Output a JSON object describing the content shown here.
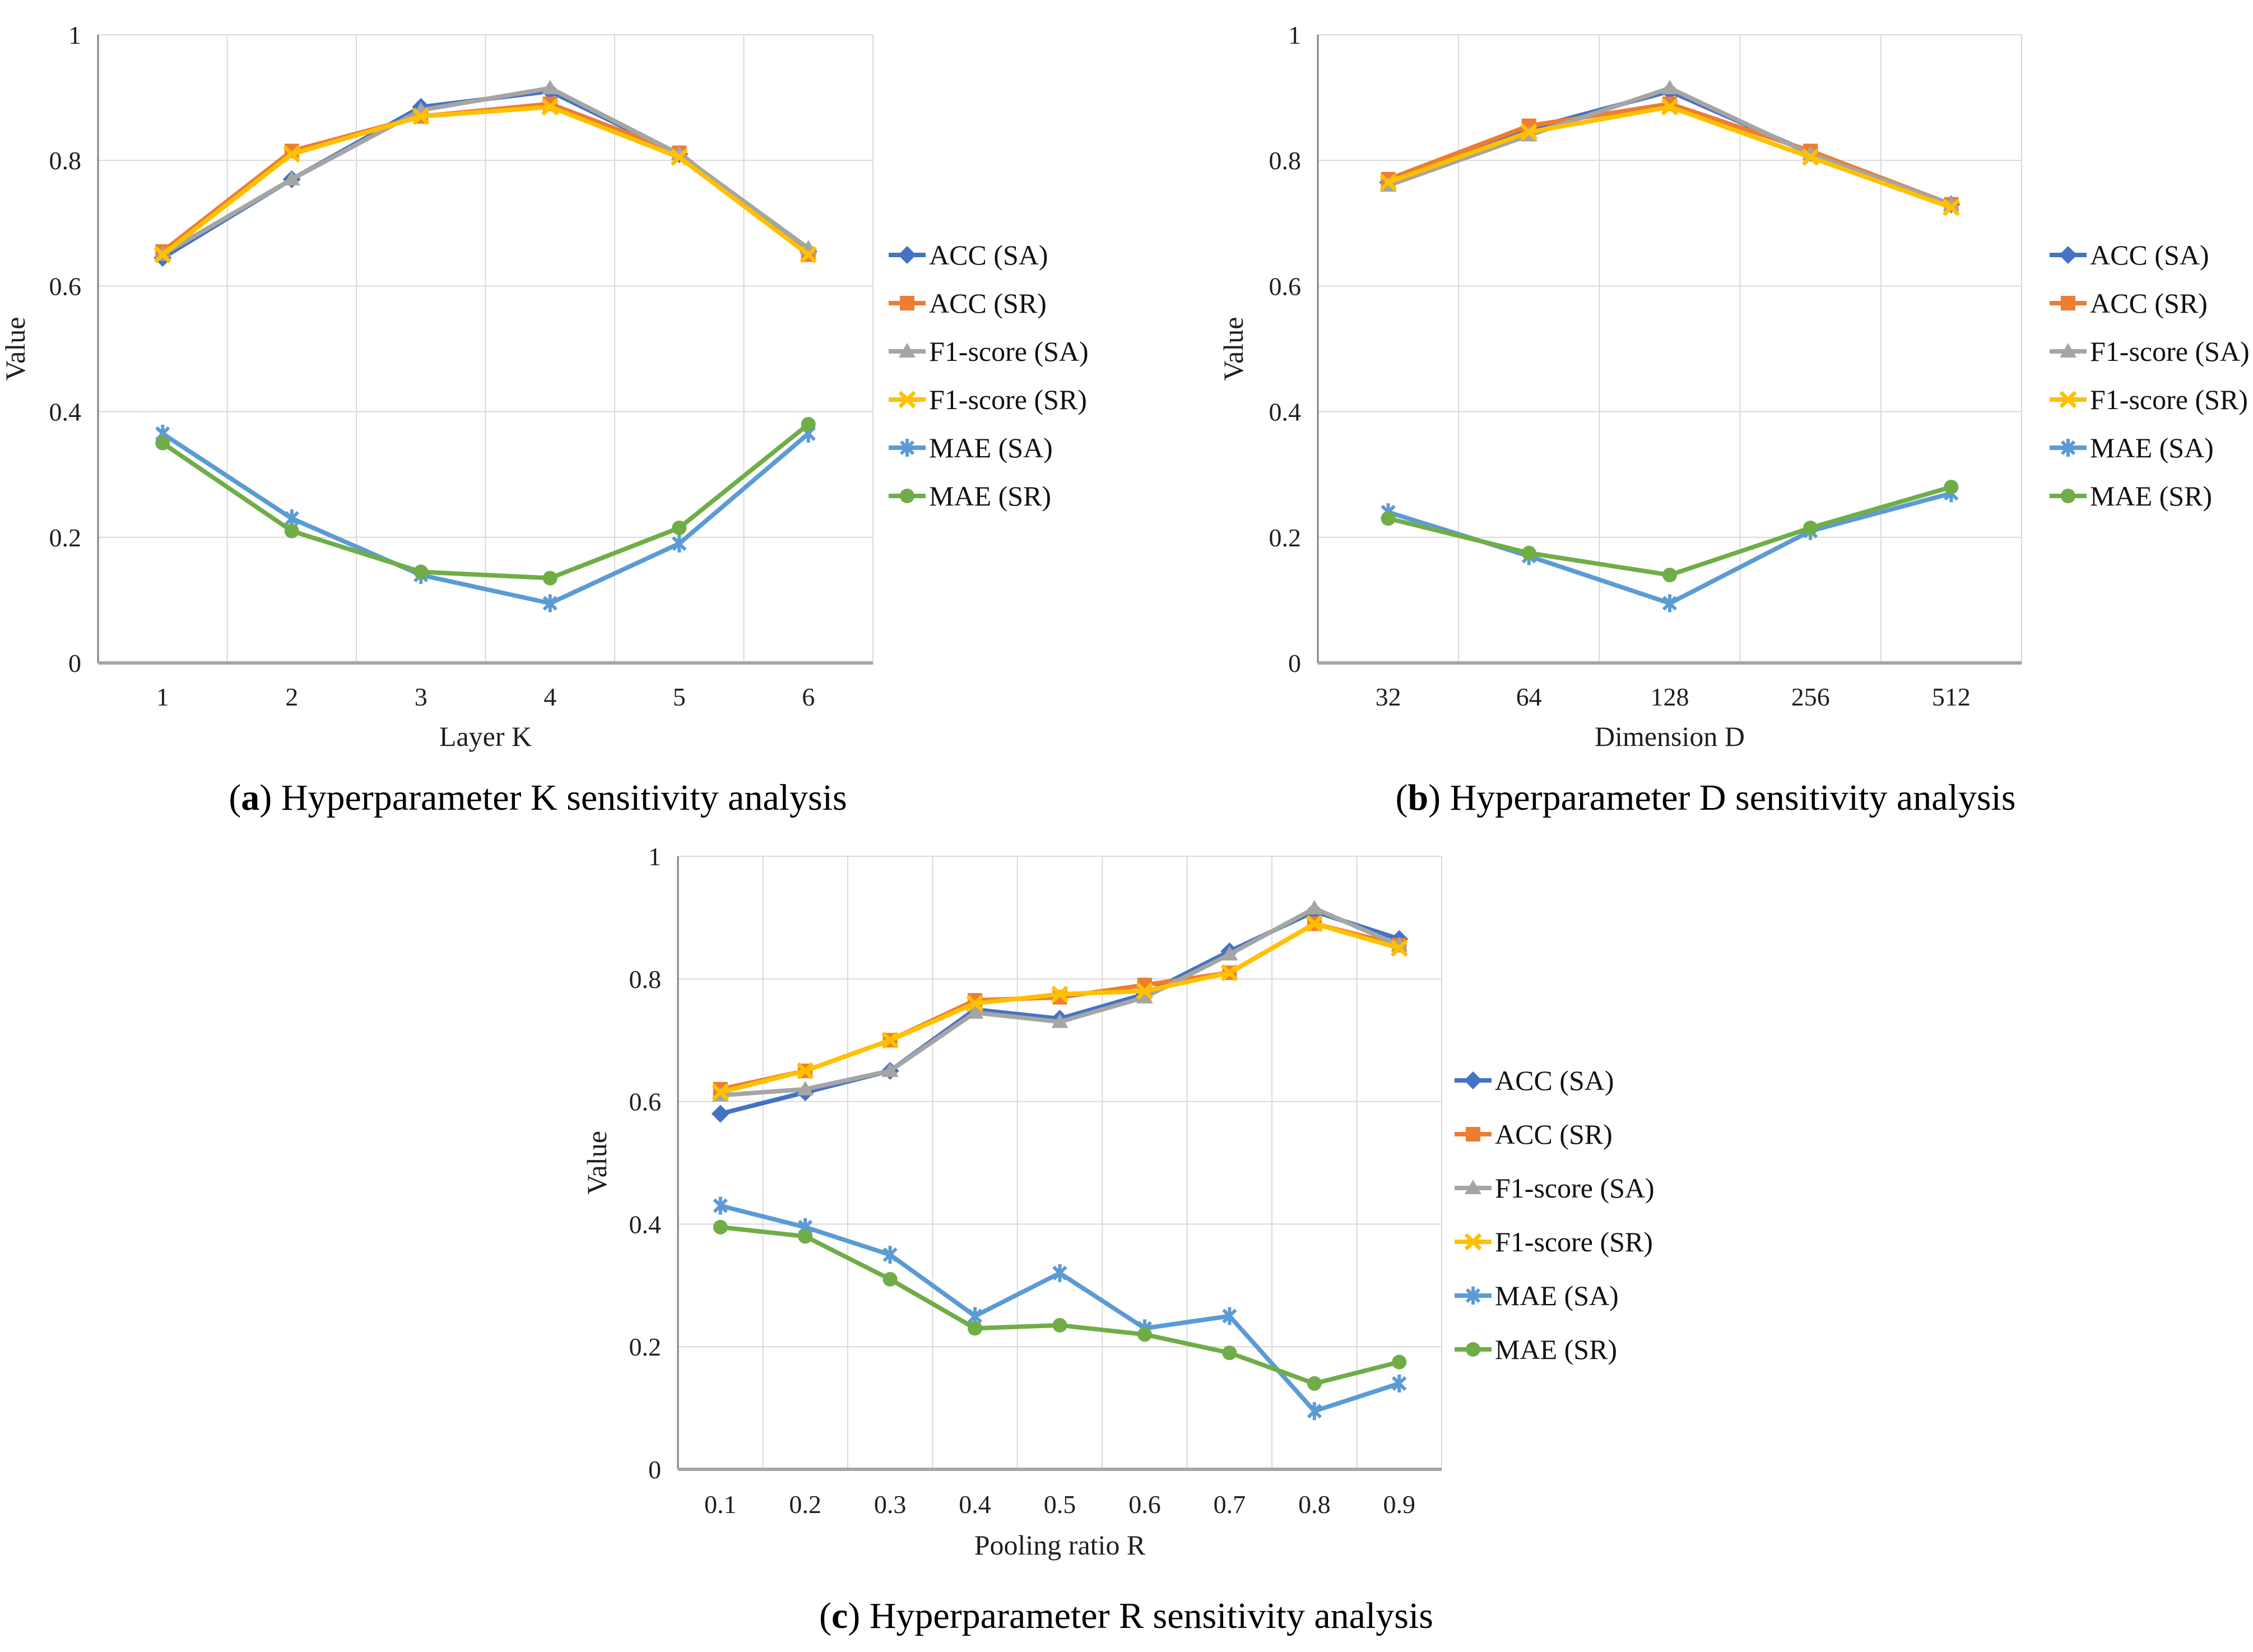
{
  "figure": {
    "background": "#ffffff",
    "text_color": "#111111",
    "gridline_color": "#d9d9d9",
    "left_axis_color": "#808080",
    "bottom_axis_color": "#a6a6a6"
  },
  "captions": [
    {
      "open": "(",
      "letter": "a",
      "close": ")",
      "text": "Hyperparameter K sensitivity analysis"
    },
    {
      "open": "(",
      "letter": "b",
      "close": ")",
      "text": "Hyperparameter D sensitivity analysis"
    },
    {
      "open": "(",
      "letter": "c",
      "close": ")",
      "text": "Hyperparameter R sensitivity analysis"
    }
  ],
  "chart_data": [
    {
      "type": "line",
      "title": "",
      "xlabel": "Layer K",
      "ylabel": "Value",
      "ylim": [
        0,
        1
      ],
      "yticks": [
        0,
        0.2,
        0.4,
        0.6,
        0.8,
        1
      ],
      "ytick_labels": [
        "0",
        "0.2",
        "0.4",
        "0.6",
        "0.8",
        "1"
      ],
      "categories": [
        "1",
        "2",
        "3",
        "4",
        "5",
        "6"
      ],
      "grid": true,
      "legend_position": "right",
      "series": [
        {
          "name": "ACC (SA)",
          "color": "#4472C4",
          "marker": "diamond",
          "values": [
            0.645,
            0.77,
            0.885,
            0.91,
            0.81,
            0.655
          ]
        },
        {
          "name": "ACC (SR)",
          "color": "#ED7D31",
          "marker": "square",
          "values": [
            0.655,
            0.815,
            0.87,
            0.89,
            0.812,
            0.65
          ]
        },
        {
          "name": "F1-score (SA)",
          "color": "#A5A5A5",
          "marker": "triangle",
          "values": [
            0.65,
            0.77,
            0.88,
            0.915,
            0.81,
            0.66
          ]
        },
        {
          "name": "F1-score (SR)",
          "color": "#FFC000",
          "marker": "x",
          "values": [
            0.65,
            0.81,
            0.87,
            0.885,
            0.805,
            0.65
          ]
        },
        {
          "name": "MAE (SA)",
          "color": "#5B9BD5",
          "marker": "asterisk",
          "values": [
            0.365,
            0.23,
            0.14,
            0.095,
            0.19,
            0.365
          ]
        },
        {
          "name": "MAE (SR)",
          "color": "#70AD47",
          "marker": "circle",
          "values": [
            0.35,
            0.21,
            0.145,
            0.135,
            0.215,
            0.38
          ]
        }
      ]
    },
    {
      "type": "line",
      "title": "",
      "xlabel": "Dimension D",
      "ylabel": "Value",
      "ylim": [
        0,
        1
      ],
      "yticks": [
        0,
        0.2,
        0.4,
        0.6,
        0.8,
        1
      ],
      "ytick_labels": [
        "0",
        "0.2",
        "0.4",
        "0.6",
        "0.8",
        "1"
      ],
      "categories": [
        "32",
        "64",
        "128",
        "256",
        "512"
      ],
      "grid": true,
      "legend_position": "right",
      "series": [
        {
          "name": "ACC (SA)",
          "color": "#4472C4",
          "marker": "diamond",
          "values": [
            0.765,
            0.85,
            0.91,
            0.812,
            0.73
          ]
        },
        {
          "name": "ACC (SR)",
          "color": "#ED7D31",
          "marker": "square",
          "values": [
            0.77,
            0.855,
            0.89,
            0.815,
            0.73
          ]
        },
        {
          "name": "F1-score (SA)",
          "color": "#A5A5A5",
          "marker": "triangle",
          "values": [
            0.76,
            0.84,
            0.915,
            0.81,
            0.73
          ]
        },
        {
          "name": "F1-score (SR)",
          "color": "#FFC000",
          "marker": "x",
          "values": [
            0.765,
            0.845,
            0.885,
            0.805,
            0.725
          ]
        },
        {
          "name": "MAE (SA)",
          "color": "#5B9BD5",
          "marker": "asterisk",
          "values": [
            0.24,
            0.17,
            0.095,
            0.21,
            0.27
          ]
        },
        {
          "name": "MAE (SR)",
          "color": "#70AD47",
          "marker": "circle",
          "values": [
            0.23,
            0.175,
            0.14,
            0.215,
            0.28
          ]
        }
      ]
    },
    {
      "type": "line",
      "title": "",
      "xlabel": "Pooling ratio R",
      "ylabel": "Value",
      "ylim": [
        0,
        1
      ],
      "yticks": [
        0,
        0.2,
        0.4,
        0.6,
        0.8,
        1
      ],
      "ytick_labels": [
        "0",
        "0.2",
        "0.4",
        "0.6",
        "0.8",
        "1"
      ],
      "categories": [
        "0.1",
        "0.2",
        "0.3",
        "0.4",
        "0.5",
        "0.6",
        "0.7",
        "0.8",
        "0.9"
      ],
      "grid": true,
      "legend_position": "right",
      "series": [
        {
          "name": "ACC (SA)",
          "color": "#4472C4",
          "marker": "diamond",
          "values": [
            0.58,
            0.615,
            0.65,
            0.75,
            0.735,
            0.775,
            0.845,
            0.91,
            0.865
          ]
        },
        {
          "name": "ACC (SR)",
          "color": "#ED7D31",
          "marker": "square",
          "values": [
            0.62,
            0.65,
            0.7,
            0.765,
            0.77,
            0.79,
            0.81,
            0.89,
            0.855
          ]
        },
        {
          "name": "F1-score (SA)",
          "color": "#A5A5A5",
          "marker": "triangle",
          "values": [
            0.61,
            0.62,
            0.65,
            0.745,
            0.73,
            0.77,
            0.84,
            0.915,
            0.855
          ]
        },
        {
          "name": "F1-score (SR)",
          "color": "#FFC000",
          "marker": "x",
          "values": [
            0.615,
            0.65,
            0.7,
            0.76,
            0.775,
            0.78,
            0.81,
            0.89,
            0.85
          ]
        },
        {
          "name": "MAE (SA)",
          "color": "#5B9BD5",
          "marker": "asterisk",
          "values": [
            0.43,
            0.395,
            0.35,
            0.25,
            0.32,
            0.23,
            0.25,
            0.095,
            0.14
          ]
        },
        {
          "name": "MAE (SR)",
          "color": "#70AD47",
          "marker": "circle",
          "values": [
            0.395,
            0.38,
            0.31,
            0.23,
            0.235,
            0.22,
            0.19,
            0.14,
            0.175
          ]
        }
      ]
    }
  ]
}
